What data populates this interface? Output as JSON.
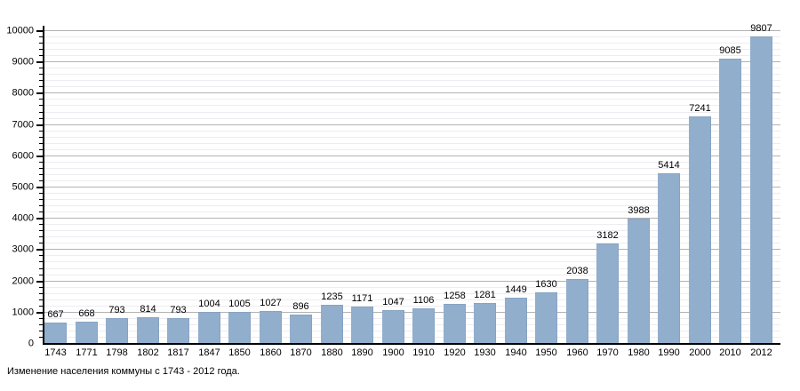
{
  "chart_data": {
    "type": "bar",
    "title": "",
    "caption": "Изменение населения коммуны с 1743 - 2012 года.",
    "categories": [
      "1743",
      "1771",
      "1798",
      "1802",
      "1817",
      "1847",
      "1850",
      "1860",
      "1870",
      "1880",
      "1890",
      "1900",
      "1910",
      "1920",
      "1930",
      "1940",
      "1950",
      "1960",
      "1970",
      "1980",
      "1990",
      "2000",
      "2010",
      "2012"
    ],
    "values": [
      667,
      668,
      793,
      814,
      793,
      1004,
      1005,
      1027,
      896,
      1235,
      1171,
      1047,
      1106,
      1258,
      1281,
      1449,
      1630,
      2038,
      3182,
      3988,
      5414,
      7241,
      9085,
      9807
    ],
    "xlabel": "",
    "ylabel": "",
    "ylim": [
      0,
      10000
    ],
    "ytick_major_step": 1000,
    "ytick_minor_step": 200,
    "grid": "horizontal",
    "legend": "none",
    "colors": {
      "bar_fill": "#92aecd",
      "bar_border": "#87a3c2",
      "major_grid": "#b3b3b3",
      "minor_grid": "#ededf1",
      "axis": "#000000",
      "text": "#000000"
    }
  }
}
